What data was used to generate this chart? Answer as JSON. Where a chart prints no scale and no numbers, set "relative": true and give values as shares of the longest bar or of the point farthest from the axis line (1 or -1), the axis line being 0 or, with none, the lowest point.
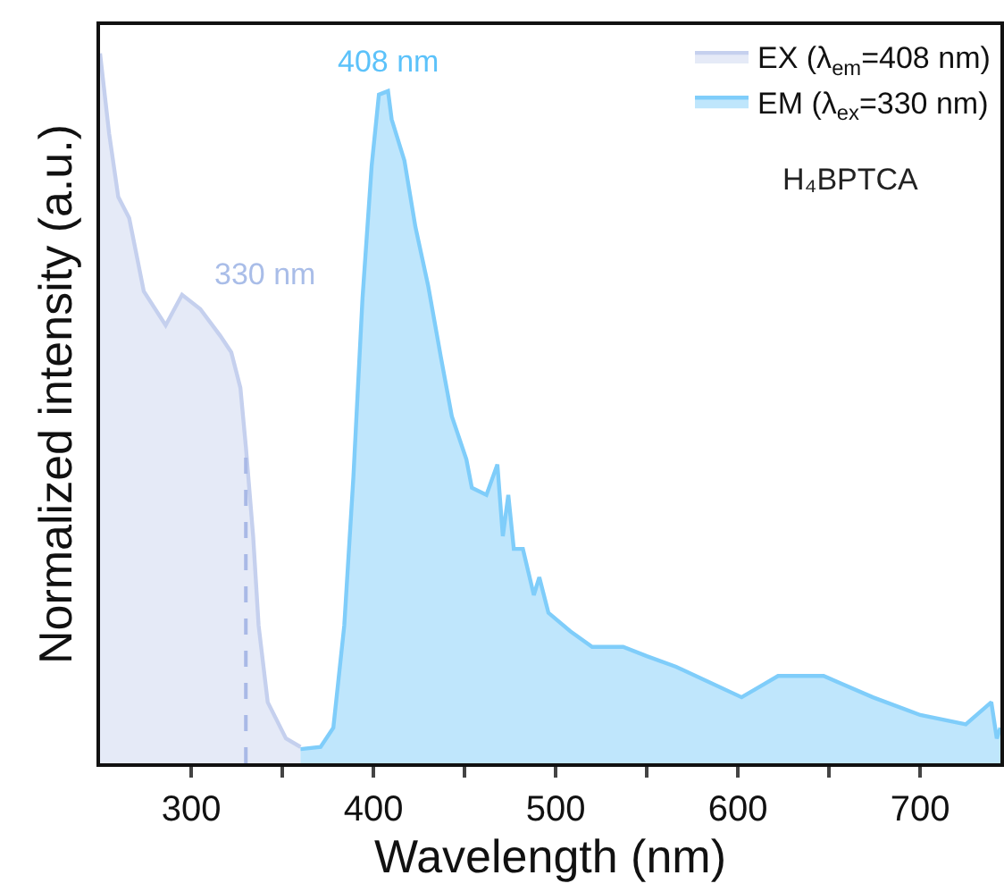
{
  "chart_data": {
    "type": "area",
    "relative": true,
    "xlabel": "Wavelength (nm)",
    "ylabel": "Normalized intensity (a.u.)",
    "xlim": [
      250,
      744
    ],
    "xticks": [
      300,
      {
        "value": 350,
        "label": null
      },
      400,
      {
        "value": 450,
        "label": null
      },
      500,
      {
        "value": 550,
        "label": null
      },
      600,
      {
        "value": 650,
        "label": null
      },
      700
    ],
    "legend": "top right",
    "grid": false,
    "line_style": "solid",
    "marker": "none",
    "series": [
      {
        "name": "EX (λ$_{em}$=408 nm)",
        "color": "#c5d0ee",
        "x": [
          250,
          255,
          260,
          266,
          274,
          286,
          295,
          305,
          316,
          322,
          327,
          330,
          334,
          337,
          342,
          352,
          360
        ],
        "values": [
          1.0,
          0.887,
          0.798,
          0.768,
          0.665,
          0.617,
          0.66,
          0.64,
          0.602,
          0.579,
          0.529,
          0.446,
          0.32,
          0.194,
          0.086,
          0.035,
          0.023
        ]
      },
      {
        "name": "EM (λ$_{ex}$=330 nm)",
        "color": "#7fcdfa",
        "x": [
          360,
          371,
          378,
          384,
          389,
          394,
          399,
          403,
          408,
          410,
          417,
          423,
          430,
          437,
          443,
          451,
          454,
          462,
          468,
          471,
          474,
          477,
          482,
          488,
          491,
          496,
          508,
          520,
          537,
          550,
          566,
          602,
          622,
          647,
          674,
          700,
          725,
          739,
          742,
          744
        ],
        "values": [
          0.02,
          0.023,
          0.05,
          0.194,
          0.403,
          0.655,
          0.841,
          0.942,
          0.947,
          0.907,
          0.849,
          0.756,
          0.673,
          0.572,
          0.489,
          0.428,
          0.388,
          0.378,
          0.421,
          0.32,
          0.378,
          0.302,
          0.302,
          0.237,
          0.262,
          0.212,
          0.186,
          0.164,
          0.164,
          0.151,
          0.136,
          0.093,
          0.123,
          0.123,
          0.093,
          0.068,
          0.055,
          0.086,
          0.035,
          0.05
        ]
      }
    ],
    "ref_lines": [
      {
        "axis": "x",
        "value": 330,
        "line_style": "dashed",
        "color": "#a9b9e6"
      }
    ],
    "annotations": [
      "408 nm",
      "330 nm",
      "H₄BPTCA"
    ]
  }
}
